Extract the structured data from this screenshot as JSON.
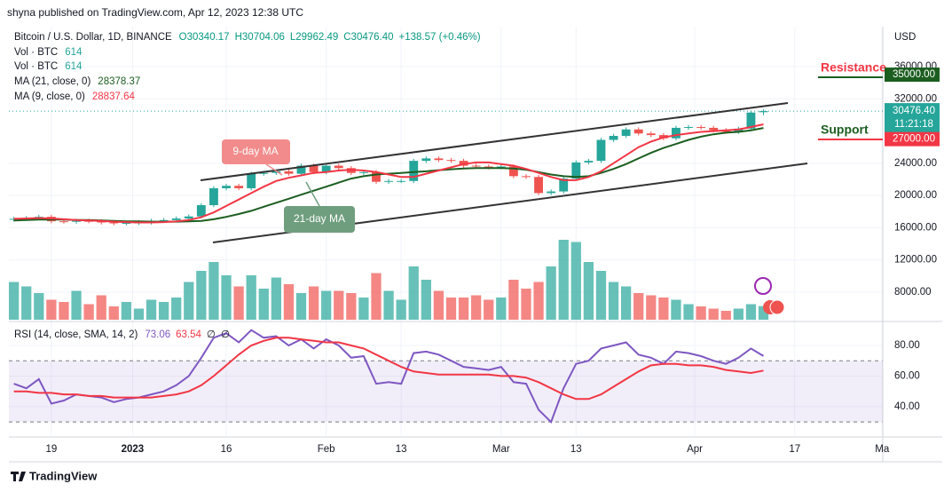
{
  "header": {
    "publisher": "shyna published on TradingView.com, Apr 12, 2023 12:38 UTC",
    "symbol": "Bitcoin / U.S. Dollar, 1D, BINANCE",
    "ohlc": [
      "O30340.17",
      "H30704.06",
      "L29962.49",
      "C30476.40",
      "+138.57 (+0.46%)"
    ],
    "indicators": [
      {
        "name": "Vol · BTC",
        "value": "614"
      },
      {
        "name": "Vol · BTC",
        "value": "614"
      }
    ]
  },
  "chart_data": {
    "type": "candlestick",
    "currency": "USD",
    "x": [
      3,
      5,
      7,
      9,
      11,
      13,
      15,
      17,
      19,
      21,
      23,
      25,
      27,
      29,
      31,
      33,
      35,
      37,
      39,
      41,
      43,
      45,
      47,
      49,
      51,
      53,
      55,
      57,
      59,
      61,
      63,
      65,
      67,
      69,
      71,
      73,
      75,
      77,
      79,
      81,
      83,
      85,
      87,
      89,
      91,
      93,
      95,
      97,
      99,
      101,
      103,
      105,
      107,
      109,
      111,
      113,
      115,
      117,
      119,
      121,
      123
    ],
    "open": [
      17000,
      17100,
      17200,
      17350,
      16800,
      16750,
      16850,
      16800,
      16650,
      16550,
      16600,
      16650,
      16850,
      16950,
      17150,
      17400,
      18800,
      20900,
      21200,
      20900,
      22700,
      22800,
      23000,
      22700,
      23700,
      22900,
      23700,
      23400,
      22800,
      22900,
      21700,
      21800,
      21800,
      24300,
      24600,
      24400,
      24300,
      23700,
      23600,
      23500,
      23600,
      22400,
      22300,
      20300,
      20500,
      22100,
      24100,
      24300,
      26900,
      27400,
      28200,
      27700,
      27500,
      27100,
      28400,
      28500,
      28400,
      28100,
      27900,
      28300,
      30340.17
    ],
    "high": [
      17350,
      17450,
      17600,
      17600,
      17050,
      17100,
      17100,
      17050,
      16900,
      16850,
      16900,
      17100,
      17200,
      17400,
      17650,
      19050,
      21150,
      21450,
      21450,
      22950,
      23050,
      23250,
      23250,
      23950,
      23950,
      23950,
      23950,
      23650,
      23150,
      23150,
      22050,
      22050,
      24550,
      24850,
      24850,
      24650,
      24550,
      23950,
      23850,
      23850,
      23850,
      22650,
      22550,
      20750,
      22350,
      24350,
      24550,
      27150,
      27650,
      28450,
      28450,
      27950,
      27750,
      28650,
      28750,
      28750,
      28650,
      28350,
      28550,
      30550,
      30704.06
    ],
    "low": [
      16750,
      16850,
      16950,
      16550,
      16500,
      16500,
      16550,
      16400,
      16300,
      16300,
      16350,
      16400,
      16600,
      16700,
      16900,
      17150,
      18550,
      20650,
      20650,
      20650,
      22450,
      22550,
      22450,
      22450,
      22650,
      22650,
      23150,
      22550,
      22550,
      21450,
      21450,
      21550,
      21550,
      24050,
      24150,
      24050,
      23450,
      23350,
      23250,
      23250,
      22150,
      22050,
      20050,
      20050,
      20250,
      21850,
      23850,
      24050,
      26650,
      27150,
      27450,
      27250,
      26850,
      26850,
      28150,
      28150,
      27850,
      27650,
      27650,
      28050,
      29962.49
    ],
    "close": [
      17100,
      17200,
      17350,
      16800,
      16750,
      16850,
      16800,
      16650,
      16550,
      16600,
      16650,
      16850,
      16950,
      17150,
      17400,
      18800,
      20900,
      21200,
      20900,
      22700,
      22800,
      23000,
      22700,
      23700,
      22900,
      23700,
      23400,
      22800,
      22900,
      21700,
      21800,
      21800,
      24300,
      24600,
      24400,
      24300,
      23700,
      23600,
      23500,
      23600,
      22400,
      22300,
      20300,
      20500,
      22100,
      24100,
      24300,
      26900,
      27400,
      28200,
      27700,
      27500,
      27100,
      28400,
      28500,
      28400,
      28100,
      27900,
      28300,
      30300,
      30476.4
    ],
    "up_color": "#26a69a",
    "down_color": "#ef5350",
    "series": [
      {
        "name": "MA (21, close, 0)",
        "color": "#1b5e20",
        "values": [
          16900,
          16950,
          17000,
          17000,
          17000,
          16950,
          16950,
          16900,
          16850,
          16800,
          16780,
          16750,
          16750,
          16750,
          16780,
          16850,
          17050,
          17350,
          17700,
          18100,
          18600,
          19100,
          19600,
          20100,
          20600,
          21100,
          21600,
          22100,
          22400,
          22600,
          22700,
          22800,
          22900,
          23000,
          23150,
          23250,
          23350,
          23400,
          23400,
          23400,
          23350,
          23200,
          22900,
          22600,
          22400,
          22300,
          22400,
          22800,
          23300,
          23900,
          24600,
          25300,
          25900,
          26400,
          26900,
          27300,
          27600,
          27800,
          27900,
          28100,
          28378.37
        ]
      },
      {
        "name": "MA (9, close, 0)",
        "color": "#f23645",
        "values": [
          17100,
          17150,
          17200,
          17150,
          17050,
          16950,
          16900,
          16850,
          16750,
          16700,
          16650,
          16650,
          16700,
          16800,
          16950,
          17300,
          17900,
          18700,
          19500,
          20300,
          21100,
          21800,
          22200,
          22500,
          22800,
          22900,
          23100,
          23200,
          23100,
          22900,
          22600,
          22300,
          22300,
          22700,
          23100,
          23500,
          23900,
          24100,
          24100,
          23900,
          23700,
          23300,
          22800,
          22300,
          21900,
          21900,
          22300,
          23000,
          24000,
          25000,
          26000,
          26700,
          27200,
          27500,
          27700,
          27900,
          28000,
          28100,
          28200,
          28500,
          28837.64
        ]
      }
    ],
    "volume": {
      "lim": [
        0,
        4000
      ],
      "values": [
        1700,
        1500,
        1200,
        900,
        800,
        1300,
        700,
        1100,
        600,
        800,
        500,
        900,
        800,
        1000,
        1700,
        2200,
        2600,
        2000,
        1500,
        2000,
        1400,
        1900,
        1600,
        1200,
        1500,
        1300,
        1300,
        1200,
        1000,
        2100,
        1300,
        900,
        2400,
        1800,
        1300,
        1000,
        1000,
        1100,
        900,
        1000,
        1800,
        1400,
        1700,
        2400,
        3600,
        3500,
        2600,
        2200,
        1700,
        1500,
        1200,
        1100,
        1000,
        900,
        700,
        600,
        500,
        400,
        500,
        700,
        614
      ]
    },
    "xlim": [
      2.2,
      142.1
    ],
    "xticks": [
      {
        "value": 9,
        "label": "19"
      },
      {
        "value": 22,
        "label": "2023"
      },
      {
        "value": 37,
        "label": "16"
      },
      {
        "value": 53,
        "label": "Feb"
      },
      {
        "value": 65,
        "label": "13"
      },
      {
        "value": 81,
        "label": "Mar"
      },
      {
        "value": 93,
        "label": "13"
      },
      {
        "value": 112,
        "label": "Apr"
      },
      {
        "value": 128,
        "label": "17"
      },
      {
        "value": 142,
        "label": "Ma"
      }
    ],
    "ylim": [
      4360,
      40960
    ],
    "yticks": [
      {
        "value": 8000,
        "label": "8000.00"
      },
      {
        "value": 12000,
        "label": "12000.00"
      },
      {
        "value": 16000,
        "label": "16000.00"
      },
      {
        "value": 20000,
        "label": "20000.00"
      },
      {
        "value": 24000,
        "label": "24000.00"
      },
      {
        "value": 32000,
        "label": "32000.00"
      },
      {
        "value": 36000,
        "label": "36000.00"
      }
    ],
    "last_price": {
      "value": 30476.4,
      "label": "30476.40",
      "countdown": "11:21:18"
    },
    "levels": [
      {
        "text": "Resistance",
        "value": 35000,
        "label": "35000.00",
        "text_color": "#f23645",
        "box_color": "#1b5e20"
      },
      {
        "text": "Support",
        "value": 27000,
        "label": "27000.00",
        "text_color": "#1b5e20",
        "box_color": "#f23645"
      }
    ],
    "annotations": [
      {
        "text": "9-day MA",
        "color": "#f28b8b"
      },
      {
        "text": "21-day MA",
        "color": "#6f9e7f"
      }
    ],
    "rsi": {
      "legend": "RSI (14, close, SMA, 14, 2)",
      "legend_values": [
        "73.06",
        "63.54",
        "∅",
        "∅"
      ],
      "ylim": [
        21.4,
        93.9
      ],
      "yticks": [
        {
          "value": 80,
          "label": "80.00"
        },
        {
          "value": 60,
          "label": "60.00"
        },
        {
          "value": 40,
          "label": "40.00"
        }
      ],
      "band": [
        30,
        70
      ],
      "series": [
        {
          "name": "RSI",
          "color": "#7e57c2",
          "values": [
            55,
            52,
            58,
            42,
            44,
            48,
            47,
            46,
            43,
            45,
            46,
            48,
            50,
            54,
            60,
            72,
            85,
            88,
            82,
            90,
            85,
            86,
            80,
            84,
            78,
            84,
            80,
            72,
            73,
            55,
            56,
            55,
            75,
            76,
            74,
            70,
            66,
            65,
            64,
            66,
            56,
            55,
            38,
            30,
            52,
            68,
            70,
            78,
            80,
            82,
            74,
            72,
            68,
            76,
            75,
            73,
            70,
            68,
            72,
            78,
            73.06
          ]
        },
        {
          "name": "SMA",
          "color": "#f23645",
          "values": [
            50,
            50,
            49,
            49,
            48,
            48,
            47,
            47,
            46,
            46,
            46,
            46,
            47,
            48,
            50,
            54,
            60,
            67,
            74,
            80,
            83,
            85,
            85,
            84,
            83,
            82,
            82,
            80,
            78,
            74,
            70,
            66,
            63,
            62,
            61,
            61,
            61,
            61,
            61,
            60,
            60,
            59,
            56,
            52,
            48,
            45,
            45,
            48,
            53,
            58,
            63,
            67,
            68,
            68,
            67,
            67,
            66,
            64,
            63,
            62,
            63.54
          ]
        }
      ]
    }
  },
  "footer": {
    "brand": "TradingView"
  }
}
